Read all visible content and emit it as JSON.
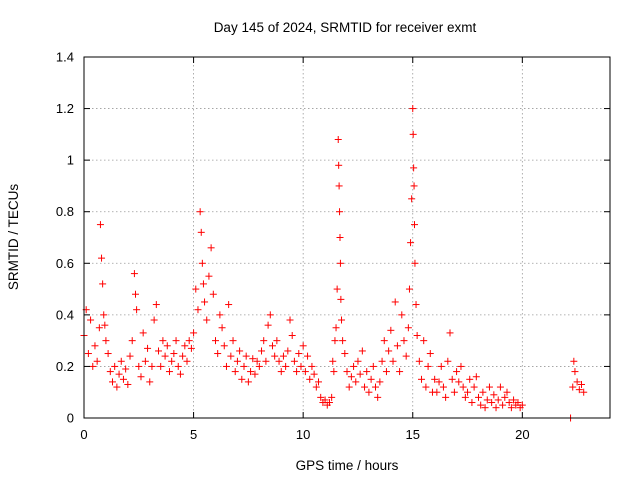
{
  "chart_data": {
    "type": "scatter",
    "title": "Day 145 of 2024, SRMTID for receiver exmt",
    "xlabel": "GPS time / hours",
    "ylabel": "SRMTID / TECUs",
    "xlim": [
      0,
      24
    ],
    "ylim": [
      0,
      1.4
    ],
    "xticks": [
      0,
      5,
      10,
      15,
      20
    ],
    "xtick_labels": [
      "0",
      "5",
      "10",
      "15",
      "20"
    ],
    "yticks": [
      0,
      0.2,
      0.4,
      0.6,
      0.8,
      1.0,
      1.2,
      1.4
    ],
    "ytick_labels": [
      "0",
      "0.2",
      "0.4",
      "0.6",
      "0.8",
      "1",
      "1.2",
      "1.4"
    ],
    "grid": true,
    "marker": "+",
    "marker_color": "#ff0000",
    "series": [
      {
        "name": "SRMTID",
        "points": [
          [
            0.0,
            0.32
          ],
          [
            0.1,
            0.42
          ],
          [
            0.2,
            0.25
          ],
          [
            0.3,
            0.38
          ],
          [
            0.4,
            0.2
          ],
          [
            0.5,
            0.28
          ],
          [
            0.6,
            0.22
          ],
          [
            0.7,
            0.35
          ],
          [
            0.75,
            0.75
          ],
          [
            0.8,
            0.62
          ],
          [
            0.85,
            0.52
          ],
          [
            0.9,
            0.4
          ],
          [
            0.95,
            0.36
          ],
          [
            1.0,
            0.3
          ],
          [
            1.1,
            0.25
          ],
          [
            1.2,
            0.18
          ],
          [
            1.3,
            0.14
          ],
          [
            1.4,
            0.2
          ],
          [
            1.5,
            0.12
          ],
          [
            1.6,
            0.17
          ],
          [
            1.7,
            0.22
          ],
          [
            1.8,
            0.15
          ],
          [
            1.9,
            0.19
          ],
          [
            2.0,
            0.13
          ],
          [
            2.1,
            0.24
          ],
          [
            2.2,
            0.3
          ],
          [
            2.3,
            0.56
          ],
          [
            2.35,
            0.48
          ],
          [
            2.4,
            0.42
          ],
          [
            2.5,
            0.2
          ],
          [
            2.6,
            0.16
          ],
          [
            2.7,
            0.33
          ],
          [
            2.8,
            0.22
          ],
          [
            2.9,
            0.27
          ],
          [
            3.0,
            0.14
          ],
          [
            3.1,
            0.2
          ],
          [
            3.2,
            0.38
          ],
          [
            3.3,
            0.44
          ],
          [
            3.4,
            0.26
          ],
          [
            3.5,
            0.2
          ],
          [
            3.6,
            0.3
          ],
          [
            3.7,
            0.24
          ],
          [
            3.8,
            0.28
          ],
          [
            3.9,
            0.18
          ],
          [
            4.0,
            0.22
          ],
          [
            4.1,
            0.25
          ],
          [
            4.2,
            0.3
          ],
          [
            4.3,
            0.2
          ],
          [
            4.4,
            0.17
          ],
          [
            4.5,
            0.24
          ],
          [
            4.6,
            0.28
          ],
          [
            4.7,
            0.22
          ],
          [
            4.8,
            0.3
          ],
          [
            4.9,
            0.27
          ],
          [
            5.0,
            0.33
          ],
          [
            5.1,
            0.5
          ],
          [
            5.2,
            0.42
          ],
          [
            5.3,
            0.8
          ],
          [
            5.35,
            0.72
          ],
          [
            5.4,
            0.6
          ],
          [
            5.45,
            0.52
          ],
          [
            5.5,
            0.45
          ],
          [
            5.6,
            0.38
          ],
          [
            5.7,
            0.55
          ],
          [
            5.8,
            0.66
          ],
          [
            5.9,
            0.48
          ],
          [
            6.0,
            0.3
          ],
          [
            6.1,
            0.25
          ],
          [
            6.2,
            0.4
          ],
          [
            6.3,
            0.35
          ],
          [
            6.4,
            0.28
          ],
          [
            6.5,
            0.2
          ],
          [
            6.6,
            0.44
          ],
          [
            6.7,
            0.24
          ],
          [
            6.8,
            0.3
          ],
          [
            6.9,
            0.18
          ],
          [
            7.0,
            0.22
          ],
          [
            7.1,
            0.26
          ],
          [
            7.2,
            0.15
          ],
          [
            7.3,
            0.2
          ],
          [
            7.4,
            0.24
          ],
          [
            7.5,
            0.14
          ],
          [
            7.6,
            0.18
          ],
          [
            7.7,
            0.23
          ],
          [
            7.8,
            0.17
          ],
          [
            7.9,
            0.22
          ],
          [
            8.0,
            0.2
          ],
          [
            8.1,
            0.26
          ],
          [
            8.2,
            0.3
          ],
          [
            8.3,
            0.22
          ],
          [
            8.4,
            0.36
          ],
          [
            8.5,
            0.4
          ],
          [
            8.6,
            0.28
          ],
          [
            8.7,
            0.24
          ],
          [
            8.8,
            0.3
          ],
          [
            8.9,
            0.22
          ],
          [
            9.0,
            0.18
          ],
          [
            9.1,
            0.24
          ],
          [
            9.2,
            0.2
          ],
          [
            9.3,
            0.26
          ],
          [
            9.4,
            0.38
          ],
          [
            9.5,
            0.32
          ],
          [
            9.6,
            0.22
          ],
          [
            9.7,
            0.18
          ],
          [
            9.8,
            0.25
          ],
          [
            9.9,
            0.2
          ],
          [
            10.0,
            0.28
          ],
          [
            10.1,
            0.18
          ],
          [
            10.2,
            0.24
          ],
          [
            10.3,
            0.15
          ],
          [
            10.4,
            0.2
          ],
          [
            10.5,
            0.17
          ],
          [
            10.6,
            0.12
          ],
          [
            10.7,
            0.14
          ],
          [
            10.8,
            0.08
          ],
          [
            10.9,
            0.06
          ],
          [
            11.0,
            0.07
          ],
          [
            11.1,
            0.05
          ],
          [
            11.2,
            0.06
          ],
          [
            11.3,
            0.08
          ],
          [
            11.35,
            0.22
          ],
          [
            11.4,
            0.18
          ],
          [
            11.45,
            0.3
          ],
          [
            11.5,
            0.35
          ],
          [
            11.55,
            0.5
          ],
          [
            11.6,
            1.08
          ],
          [
            11.62,
            0.98
          ],
          [
            11.64,
            0.9
          ],
          [
            11.66,
            0.8
          ],
          [
            11.68,
            0.7
          ],
          [
            11.7,
            0.6
          ],
          [
            11.72,
            0.46
          ],
          [
            11.75,
            0.38
          ],
          [
            11.8,
            0.3
          ],
          [
            11.9,
            0.25
          ],
          [
            12.0,
            0.18
          ],
          [
            12.1,
            0.12
          ],
          [
            12.2,
            0.16
          ],
          [
            12.3,
            0.2
          ],
          [
            12.4,
            0.14
          ],
          [
            12.5,
            0.22
          ],
          [
            12.6,
            0.17
          ],
          [
            12.7,
            0.26
          ],
          [
            12.8,
            0.12
          ],
          [
            12.9,
            0.18
          ],
          [
            13.0,
            0.1
          ],
          [
            13.1,
            0.15
          ],
          [
            13.2,
            0.2
          ],
          [
            13.3,
            0.12
          ],
          [
            13.4,
            0.08
          ],
          [
            13.5,
            0.14
          ],
          [
            13.6,
            0.22
          ],
          [
            13.7,
            0.3
          ],
          [
            13.8,
            0.18
          ],
          [
            13.9,
            0.26
          ],
          [
            14.0,
            0.34
          ],
          [
            14.1,
            0.22
          ],
          [
            14.2,
            0.45
          ],
          [
            14.3,
            0.28
          ],
          [
            14.4,
            0.18
          ],
          [
            14.5,
            0.4
          ],
          [
            14.6,
            0.3
          ],
          [
            14.7,
            0.24
          ],
          [
            14.8,
            0.35
          ],
          [
            14.85,
            0.5
          ],
          [
            14.9,
            0.68
          ],
          [
            14.95,
            0.85
          ],
          [
            15.0,
            1.2
          ],
          [
            15.02,
            1.1
          ],
          [
            15.04,
            0.97
          ],
          [
            15.06,
            0.9
          ],
          [
            15.08,
            0.75
          ],
          [
            15.1,
            0.6
          ],
          [
            15.15,
            0.44
          ],
          [
            15.2,
            0.32
          ],
          [
            15.3,
            0.22
          ],
          [
            15.4,
            0.15
          ],
          [
            15.5,
            0.3
          ],
          [
            15.6,
            0.12
          ],
          [
            15.7,
            0.2
          ],
          [
            15.8,
            0.25
          ],
          [
            15.9,
            0.1
          ],
          [
            16.0,
            0.15
          ],
          [
            16.1,
            0.1
          ],
          [
            16.2,
            0.14
          ],
          [
            16.3,
            0.2
          ],
          [
            16.4,
            0.12
          ],
          [
            16.5,
            0.08
          ],
          [
            16.6,
            0.22
          ],
          [
            16.7,
            0.33
          ],
          [
            16.8,
            0.15
          ],
          [
            16.9,
            0.1
          ],
          [
            17.0,
            0.18
          ],
          [
            17.1,
            0.14
          ],
          [
            17.2,
            0.2
          ],
          [
            17.3,
            0.12
          ],
          [
            17.4,
            0.08
          ],
          [
            17.5,
            0.1
          ],
          [
            17.6,
            0.15
          ],
          [
            17.7,
            0.06
          ],
          [
            17.8,
            0.12
          ],
          [
            17.9,
            0.16
          ],
          [
            18.0,
            0.08
          ],
          [
            18.1,
            0.05
          ],
          [
            18.2,
            0.1
          ],
          [
            18.3,
            0.04
          ],
          [
            18.4,
            0.07
          ],
          [
            18.5,
            0.12
          ],
          [
            18.6,
            0.06
          ],
          [
            18.7,
            0.09
          ],
          [
            18.8,
            0.04
          ],
          [
            18.9,
            0.07
          ],
          [
            19.0,
            0.12
          ],
          [
            19.1,
            0.05
          ],
          [
            19.2,
            0.08
          ],
          [
            19.3,
            0.1
          ],
          [
            19.4,
            0.06
          ],
          [
            19.5,
            0.04
          ],
          [
            19.6,
            0.07
          ],
          [
            19.7,
            0.05
          ],
          [
            19.8,
            0.06
          ],
          [
            19.9,
            0.04
          ],
          [
            20.0,
            0.05
          ],
          [
            22.2,
            0.0
          ],
          [
            22.3,
            0.12
          ],
          [
            22.35,
            0.22
          ],
          [
            22.4,
            0.18
          ],
          [
            22.5,
            0.14
          ],
          [
            22.6,
            0.11
          ],
          [
            22.7,
            0.13
          ],
          [
            22.8,
            0.1
          ]
        ]
      }
    ]
  }
}
